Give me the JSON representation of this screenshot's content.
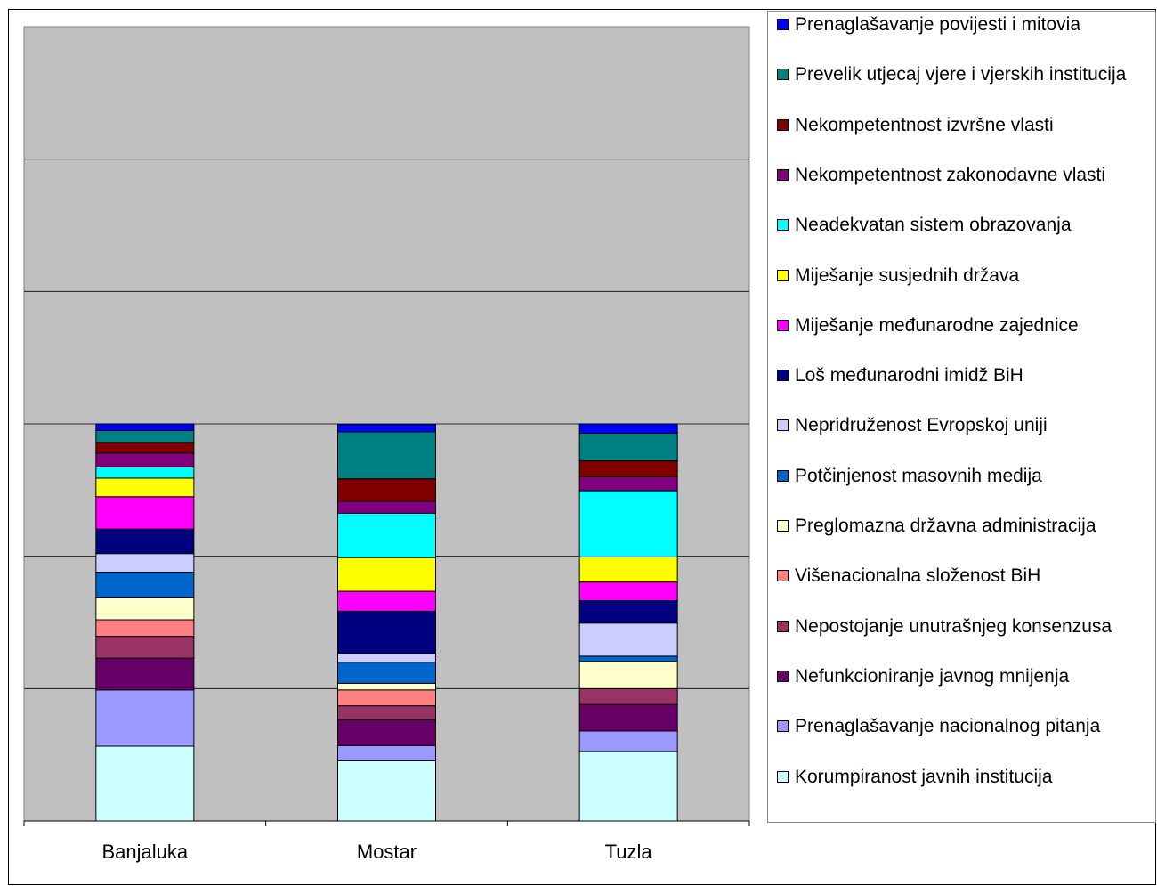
{
  "chart_data": {
    "type": "bar",
    "stacked": true,
    "categories": [
      "Banjaluka",
      "Mostar",
      "Tuzla"
    ],
    "ylim": [
      0,
      120
    ],
    "grid": true,
    "legend_position": "right",
    "series": [
      {
        "name": "Korumpiranost javnih institucija",
        "color": "#CCFFFF",
        "values": [
          11.3,
          9.1,
          10.5
        ]
      },
      {
        "name": "Prenaglašavanje nacionalnog pitanja",
        "color": "#9999FF",
        "values": [
          8.5,
          2.3,
          3.1
        ]
      },
      {
        "name": "Nefunkcioniranje  javnog mnijenja",
        "color": "#660066",
        "values": [
          4.8,
          3.9,
          4.0
        ]
      },
      {
        "name": "Nepostojanje unutrašnjeg konsenzusa",
        "color": "#993366",
        "values": [
          3.3,
          2.1,
          2.4
        ]
      },
      {
        "name": "Višenacionalna složenost BiH",
        "color": "#FF8080",
        "values": [
          2.5,
          2.4,
          0.0
        ]
      },
      {
        "name": "Preglomazna državna administracija",
        "color": "#FFFFCC",
        "values": [
          3.3,
          1.0,
          4.1
        ]
      },
      {
        "name": "Potčinjenost masovnih medija",
        "color": "#0066CC",
        "values": [
          3.9,
          3.2,
          0.8
        ]
      },
      {
        "name": "Nepridruženost Evropskoj uniji",
        "color": "#CCCCFF",
        "values": [
          2.8,
          1.3,
          5.0
        ]
      },
      {
        "name": "Loš međunarodni imidž BiH",
        "color": "#000080",
        "values": [
          3.7,
          6.4,
          3.4
        ]
      },
      {
        "name": "Miješanje međunarodne zajednice",
        "color": "#FF00FF",
        "values": [
          4.9,
          3.0,
          2.8
        ]
      },
      {
        "name": "Miješanje susjednih država",
        "color": "#FFFF00",
        "values": [
          2.8,
          5.1,
          3.8
        ]
      },
      {
        "name": "Neadekvatan sistem obrazovanja",
        "color": "#00FFFF",
        "values": [
          1.7,
          6.7,
          10.0
        ]
      },
      {
        "name": "Nekompetentnost zakonodavne vlasti",
        "color": "#800080",
        "values": [
          2.1,
          1.8,
          2.1
        ]
      },
      {
        "name": "Nekompetentnost izvršne vlasti",
        "color": "#800000",
        "values": [
          1.6,
          3.4,
          2.4
        ]
      },
      {
        "name": "Prevelik utjecaj vjere i vjerskih institucija",
        "color": "#008080",
        "values": [
          1.8,
          7.1,
          4.2
        ]
      },
      {
        "name": "Prenaglašavanje povijesti i mitovia",
        "color": "#0000FF",
        "values": [
          1.0,
          1.1,
          1.4
        ]
      }
    ]
  }
}
